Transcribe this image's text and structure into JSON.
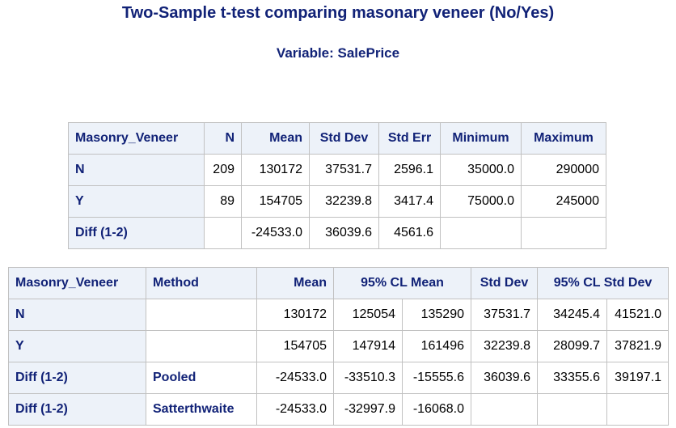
{
  "title": "Two-Sample t-test comparing masonary veneer (No/Yes)",
  "subtitle": "Variable: SalePrice",
  "stats_table": {
    "headers": [
      "Masonry_Veneer",
      "N",
      "Mean",
      "Std Dev",
      "Std Err",
      "Minimum",
      "Maximum"
    ],
    "rows": [
      {
        "label": "N",
        "n": "209",
        "mean": "130172",
        "std_dev": "37531.7",
        "std_err": "2596.1",
        "minimum": "35000.0",
        "maximum": "290000"
      },
      {
        "label": "Y",
        "n": "89",
        "mean": "154705",
        "std_dev": "32239.8",
        "std_err": "3417.4",
        "minimum": "75000.0",
        "maximum": "245000"
      },
      {
        "label": "Diff (1-2)",
        "n": "",
        "mean": "-24533.0",
        "std_dev": "36039.6",
        "std_err": "4561.6",
        "minimum": "",
        "maximum": ""
      }
    ]
  },
  "cl_table": {
    "headers": [
      "Masonry_Veneer",
      "Method",
      "Mean",
      "95% CL Mean",
      "Std Dev",
      "95% CL Std Dev"
    ],
    "rows": [
      {
        "label": "N",
        "method": "",
        "mean": "130172",
        "cl_mean_low": "125054",
        "cl_mean_high": "135290",
        "std_dev": "37531.7",
        "cl_sd_low": "34245.4",
        "cl_sd_high": "41521.0"
      },
      {
        "label": "Y",
        "method": "",
        "mean": "154705",
        "cl_mean_low": "147914",
        "cl_mean_high": "161496",
        "std_dev": "32239.8",
        "cl_sd_low": "28099.7",
        "cl_sd_high": "37821.9"
      },
      {
        "label": "Diff (1-2)",
        "method": "Pooled",
        "mean": "-24533.0",
        "cl_mean_low": "-33510.3",
        "cl_mean_high": "-15555.6",
        "std_dev": "36039.6",
        "cl_sd_low": "33355.6",
        "cl_sd_high": "39197.1"
      },
      {
        "label": "Diff (1-2)",
        "method": "Satterthwaite",
        "mean": "-24533.0",
        "cl_mean_low": "-32997.9",
        "cl_mean_high": "-16068.0",
        "std_dev": "",
        "cl_sd_low": "",
        "cl_sd_high": ""
      }
    ]
  }
}
